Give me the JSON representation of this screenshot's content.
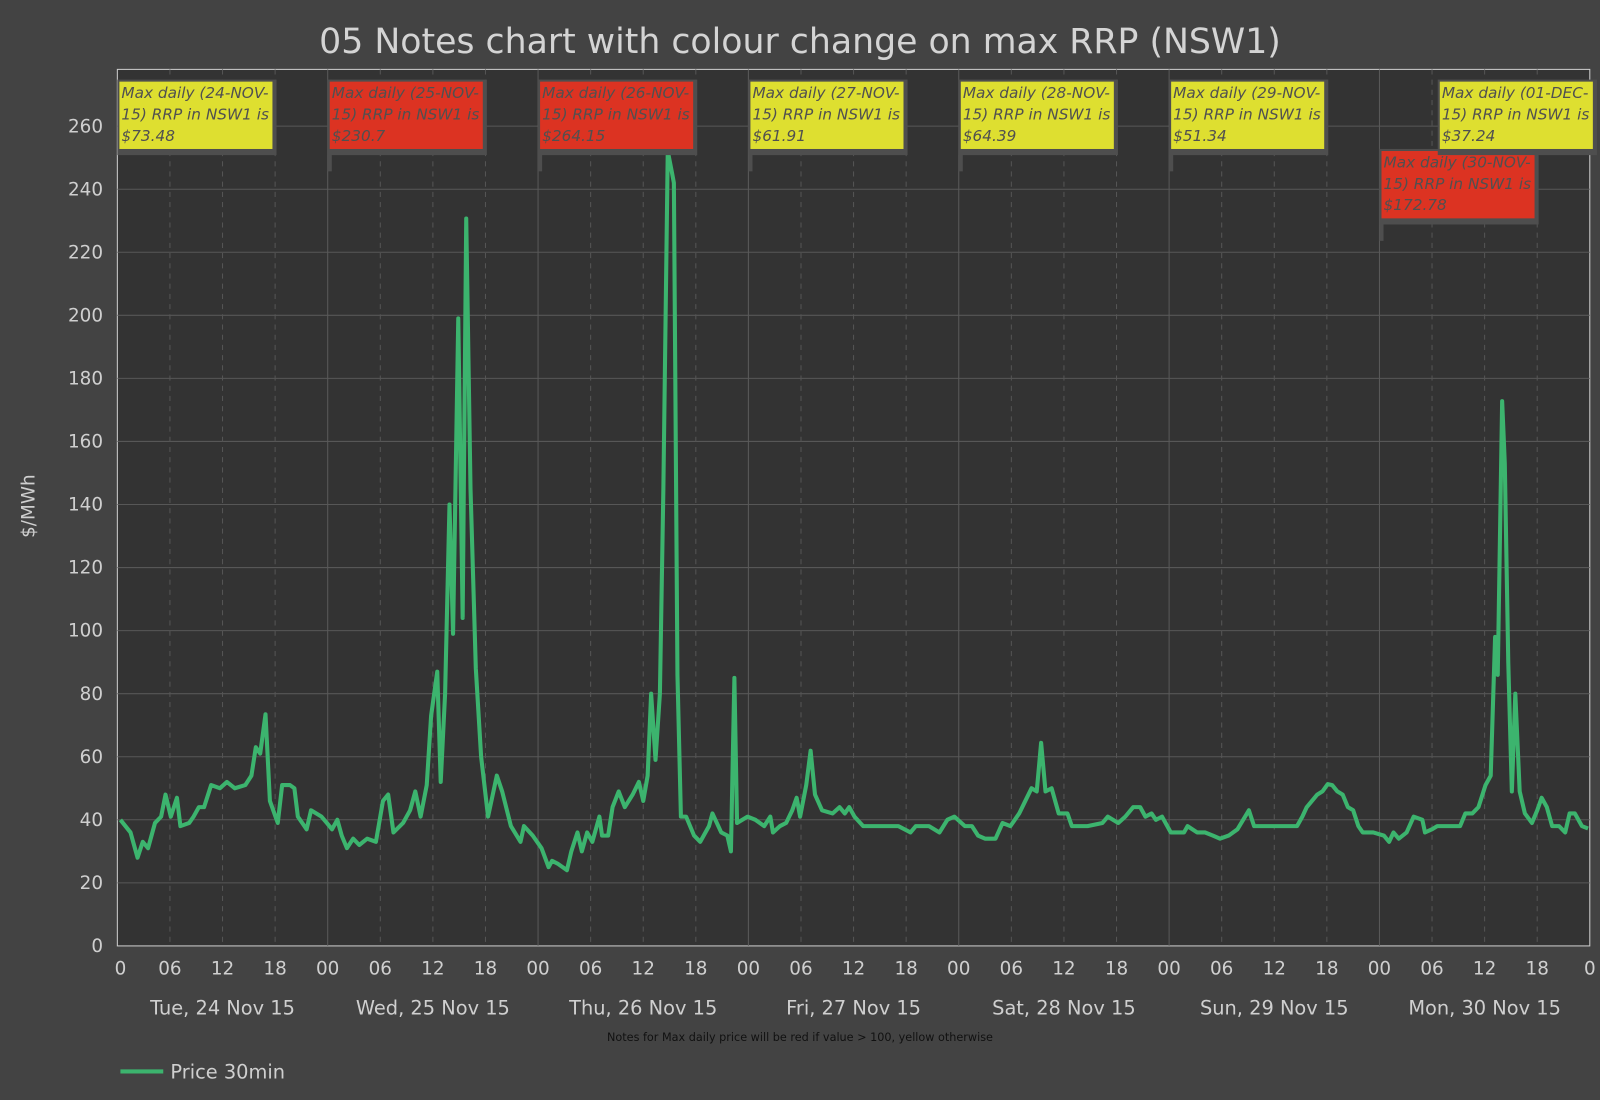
{
  "chart_data": {
    "type": "line",
    "title": "05 Notes chart with colour change on max RRP (NSW1)",
    "ylabel": "$/MWh",
    "xlabel": "",
    "ylim": [
      0,
      278
    ],
    "yticks": [
      0,
      20,
      40,
      60,
      80,
      100,
      120,
      140,
      160,
      180,
      200,
      220,
      240,
      260
    ],
    "x_unit": "hours since Tue 24 Nov 15 00:00",
    "xlim": [
      0,
      168
    ],
    "hour_ticks": [
      "0",
      "06",
      "12",
      "18",
      "00",
      "06",
      "12",
      "18",
      "00",
      "06",
      "12",
      "18",
      "00",
      "06",
      "12",
      "18",
      "00",
      "06",
      "12",
      "18",
      "00",
      "06",
      "12",
      "18",
      "00",
      "06",
      "12",
      "18",
      "0"
    ],
    "day_labels": [
      "Tue, 24 Nov 15",
      "Wed, 25 Nov 15",
      "Thu, 26 Nov 15",
      "Fri, 27 Nov 15",
      "Sat, 28 Nov 15",
      "Sun, 29 Nov 15",
      "Mon, 30 Nov 15"
    ],
    "caption": "Notes for Max daily price will be red if value > 100, yellow otherwise",
    "grid": true,
    "legend_position": "bottom-left",
    "series": [
      {
        "name": "Price 30min",
        "color": "#3cb46e",
        "points": [
          [
            0.35,
            40
          ],
          [
            1.5,
            36
          ],
          [
            2.3,
            28
          ],
          [
            2.9,
            33
          ],
          [
            3.5,
            31
          ],
          [
            4.3,
            39
          ],
          [
            5.0,
            41
          ],
          [
            5.5,
            48
          ],
          [
            6.1,
            41
          ],
          [
            6.8,
            47
          ],
          [
            7.2,
            38
          ],
          [
            8.2,
            39
          ],
          [
            8.7,
            41
          ],
          [
            9.3,
            44
          ],
          [
            9.9,
            44
          ],
          [
            10.7,
            51
          ],
          [
            11.7,
            50
          ],
          [
            12.5,
            52
          ],
          [
            13.4,
            50
          ],
          [
            14.6,
            51
          ],
          [
            15.3,
            54
          ],
          [
            15.8,
            63
          ],
          [
            16.3,
            61
          ],
          [
            16.9,
            73.48
          ],
          [
            17.4,
            46
          ],
          [
            18.3,
            39
          ],
          [
            18.8,
            51
          ],
          [
            19.7,
            51
          ],
          [
            20.2,
            50
          ],
          [
            20.6,
            41
          ],
          [
            21.6,
            37
          ],
          [
            22.1,
            43
          ],
          [
            23.3,
            41
          ],
          [
            23.9,
            39
          ],
          [
            24.5,
            37
          ],
          [
            25.1,
            40
          ],
          [
            25.6,
            35
          ],
          [
            26.2,
            31
          ],
          [
            26.9,
            34
          ],
          [
            27.6,
            32
          ],
          [
            28.5,
            34
          ],
          [
            29.5,
            33
          ],
          [
            30.3,
            46
          ],
          [
            30.9,
            48
          ],
          [
            31.5,
            36
          ],
          [
            32.6,
            39
          ],
          [
            33.4,
            43
          ],
          [
            34.0,
            49
          ],
          [
            34.6,
            41
          ],
          [
            35.3,
            51
          ],
          [
            35.8,
            73
          ],
          [
            36.5,
            87
          ],
          [
            36.9,
            52
          ],
          [
            37.4,
            80
          ],
          [
            37.9,
            140
          ],
          [
            38.3,
            99
          ],
          [
            38.9,
            199
          ],
          [
            39.4,
            104
          ],
          [
            39.8,
            230.7
          ],
          [
            40.3,
            145
          ],
          [
            40.9,
            88
          ],
          [
            41.5,
            60
          ],
          [
            42.3,
            41
          ],
          [
            43.3,
            54
          ],
          [
            43.9,
            49
          ],
          [
            44.9,
            38
          ],
          [
            46.0,
            33
          ],
          [
            46.4,
            38
          ],
          [
            47.4,
            35
          ],
          [
            48.4,
            31
          ],
          [
            49.2,
            25
          ],
          [
            49.6,
            27
          ],
          [
            50.3,
            26
          ],
          [
            51.3,
            24
          ],
          [
            51.8,
            30
          ],
          [
            52.5,
            36
          ],
          [
            53.0,
            30
          ],
          [
            53.6,
            36
          ],
          [
            54.2,
            33
          ],
          [
            55.0,
            41
          ],
          [
            55.3,
            35
          ],
          [
            56.0,
            35
          ],
          [
            56.5,
            44
          ],
          [
            57.2,
            49
          ],
          [
            57.9,
            44
          ],
          [
            58.8,
            48
          ],
          [
            59.5,
            52
          ],
          [
            60.0,
            46
          ],
          [
            60.5,
            54
          ],
          [
            60.9,
            80
          ],
          [
            61.4,
            59
          ],
          [
            61.9,
            80
          ],
          [
            62.3,
            145
          ],
          [
            62.8,
            264.15
          ],
          [
            63.3,
            245
          ],
          [
            63.5,
            242
          ],
          [
            63.9,
            86
          ],
          [
            64.3,
            41
          ],
          [
            64.9,
            41
          ],
          [
            65.8,
            35
          ],
          [
            66.5,
            33
          ],
          [
            67.5,
            38
          ],
          [
            67.9,
            42
          ],
          [
            68.9,
            36
          ],
          [
            69.6,
            35
          ],
          [
            70.0,
            30
          ],
          [
            70.4,
            85
          ],
          [
            70.7,
            39
          ],
          [
            71.9,
            41
          ],
          [
            72.8,
            40
          ],
          [
            73.8,
            38
          ],
          [
            74.5,
            41
          ],
          [
            74.8,
            36
          ],
          [
            75.6,
            38
          ],
          [
            76.3,
            39
          ],
          [
            77.0,
            43
          ],
          [
            77.5,
            47
          ],
          [
            77.9,
            41
          ],
          [
            78.6,
            51
          ],
          [
            79.1,
            61.91
          ],
          [
            79.6,
            48
          ],
          [
            80.4,
            43
          ],
          [
            81.6,
            42
          ],
          [
            82.4,
            44
          ],
          [
            83.0,
            42
          ],
          [
            83.5,
            44
          ],
          [
            84.1,
            41
          ],
          [
            85.1,
            38
          ],
          [
            86.8,
            38
          ],
          [
            89.1,
            38
          ],
          [
            90.5,
            36
          ],
          [
            91.1,
            38
          ],
          [
            92.6,
            38
          ],
          [
            93.8,
            36
          ],
          [
            94.7,
            40
          ],
          [
            95.5,
            41
          ],
          [
            96.7,
            38
          ],
          [
            97.5,
            38
          ],
          [
            98.2,
            35
          ],
          [
            99.0,
            34
          ],
          [
            100.2,
            34
          ],
          [
            101.0,
            39
          ],
          [
            101.9,
            38
          ],
          [
            102.9,
            42
          ],
          [
            103.6,
            46
          ],
          [
            104.3,
            50
          ],
          [
            104.9,
            49
          ],
          [
            105.4,
            64.39
          ],
          [
            105.9,
            49
          ],
          [
            106.6,
            50
          ],
          [
            107.4,
            42
          ],
          [
            108.4,
            42
          ],
          [
            108.9,
            38
          ],
          [
            110.7,
            38
          ],
          [
            112.4,
            39
          ],
          [
            113.0,
            41
          ],
          [
            114.2,
            39
          ],
          [
            115.0,
            41
          ],
          [
            115.9,
            44
          ],
          [
            116.7,
            44
          ],
          [
            117.3,
            41
          ],
          [
            118.0,
            42
          ],
          [
            118.5,
            40
          ],
          [
            119.2,
            41
          ],
          [
            120.2,
            36
          ],
          [
            121.7,
            36
          ],
          [
            122.1,
            38
          ],
          [
            123.2,
            36
          ],
          [
            124.1,
            36
          ],
          [
            125.0,
            35
          ],
          [
            125.8,
            34
          ],
          [
            126.8,
            35
          ],
          [
            127.8,
            37
          ],
          [
            129.1,
            43
          ],
          [
            129.7,
            38
          ],
          [
            131.1,
            38
          ],
          [
            132.8,
            38
          ],
          [
            133.6,
            38
          ],
          [
            134.6,
            38
          ],
          [
            135.2,
            41
          ],
          [
            135.7,
            44
          ],
          [
            136.3,
            46
          ],
          [
            136.9,
            48
          ],
          [
            137.5,
            49
          ],
          [
            138.1,
            51.34
          ],
          [
            138.6,
            51
          ],
          [
            139.2,
            49
          ],
          [
            139.8,
            48
          ],
          [
            140.4,
            44
          ],
          [
            141.0,
            43
          ],
          [
            141.6,
            38
          ],
          [
            142.1,
            36
          ],
          [
            143.3,
            36
          ],
          [
            144.5,
            35
          ],
          [
            145.1,
            33
          ],
          [
            145.6,
            36
          ],
          [
            146.2,
            34
          ],
          [
            147.1,
            36
          ],
          [
            147.9,
            41
          ],
          [
            148.9,
            40
          ],
          [
            149.2,
            36
          ],
          [
            150.0,
            37
          ],
          [
            150.6,
            38
          ],
          [
            151.5,
            38
          ],
          [
            153.2,
            38
          ],
          [
            153.8,
            42
          ],
          [
            154.6,
            42
          ],
          [
            155.3,
            44
          ],
          [
            156.1,
            51
          ],
          [
            156.7,
            54
          ],
          [
            157.2,
            98
          ],
          [
            157.5,
            86
          ],
          [
            158.0,
            172.78
          ],
          [
            158.3,
            153
          ],
          [
            158.7,
            90
          ],
          [
            159.1,
            49
          ],
          [
            159.5,
            80
          ],
          [
            160.0,
            49
          ],
          [
            160.6,
            42
          ],
          [
            161.4,
            39
          ],
          [
            162.0,
            43
          ],
          [
            162.5,
            47
          ],
          [
            163.1,
            44
          ],
          [
            163.7,
            38
          ],
          [
            164.5,
            38
          ],
          [
            165.2,
            36
          ],
          [
            165.7,
            42
          ],
          [
            166.3,
            42
          ],
          [
            167.1,
            38
          ],
          [
            167.8,
            37.24
          ]
        ]
      }
    ],
    "notes": [
      {
        "day_index": 0,
        "value": 73.48,
        "color": "#dedf30",
        "lines": [
          "Max daily (24-NOV-",
          "15) RRP in NSW1 is",
          "$73.48"
        ]
      },
      {
        "day_index": 1,
        "value": 230.7,
        "color": "#dc3322",
        "lines": [
          "Max daily (25-NOV-",
          "15) RRP in NSW1 is",
          "$230.7"
        ]
      },
      {
        "day_index": 2,
        "value": 264.15,
        "color": "#dc3322",
        "lines": [
          "Max daily (26-NOV-",
          "15) RRP in NSW1 is",
          "$264.15"
        ]
      },
      {
        "day_index": 3,
        "value": 61.91,
        "color": "#dedf30",
        "lines": [
          "Max daily (27-NOV-",
          "15) RRP in NSW1 is",
          "$61.91"
        ]
      },
      {
        "day_index": 4,
        "value": 64.39,
        "color": "#dedf30",
        "lines": [
          "Max daily (28-NOV-",
          "15) RRP in NSW1 is",
          "$64.39"
        ]
      },
      {
        "day_index": 5,
        "value": 51.34,
        "color": "#dedf30",
        "lines": [
          "Max daily (29-NOV-",
          "15) RRP in NSW1 is",
          "$51.34"
        ]
      },
      {
        "day_index": 6,
        "value": 172.78,
        "color": "#dc3322",
        "lines": [
          "Max daily (30-NOV-",
          "15) RRP in NSW1 is",
          "$172.78"
        ]
      },
      {
        "day_index": 7,
        "value": 37.24,
        "color": "#dedf30",
        "lines": [
          "Max daily (01-DEC-",
          "15) RRP in NSW1 is",
          "$37.24"
        ]
      }
    ]
  }
}
